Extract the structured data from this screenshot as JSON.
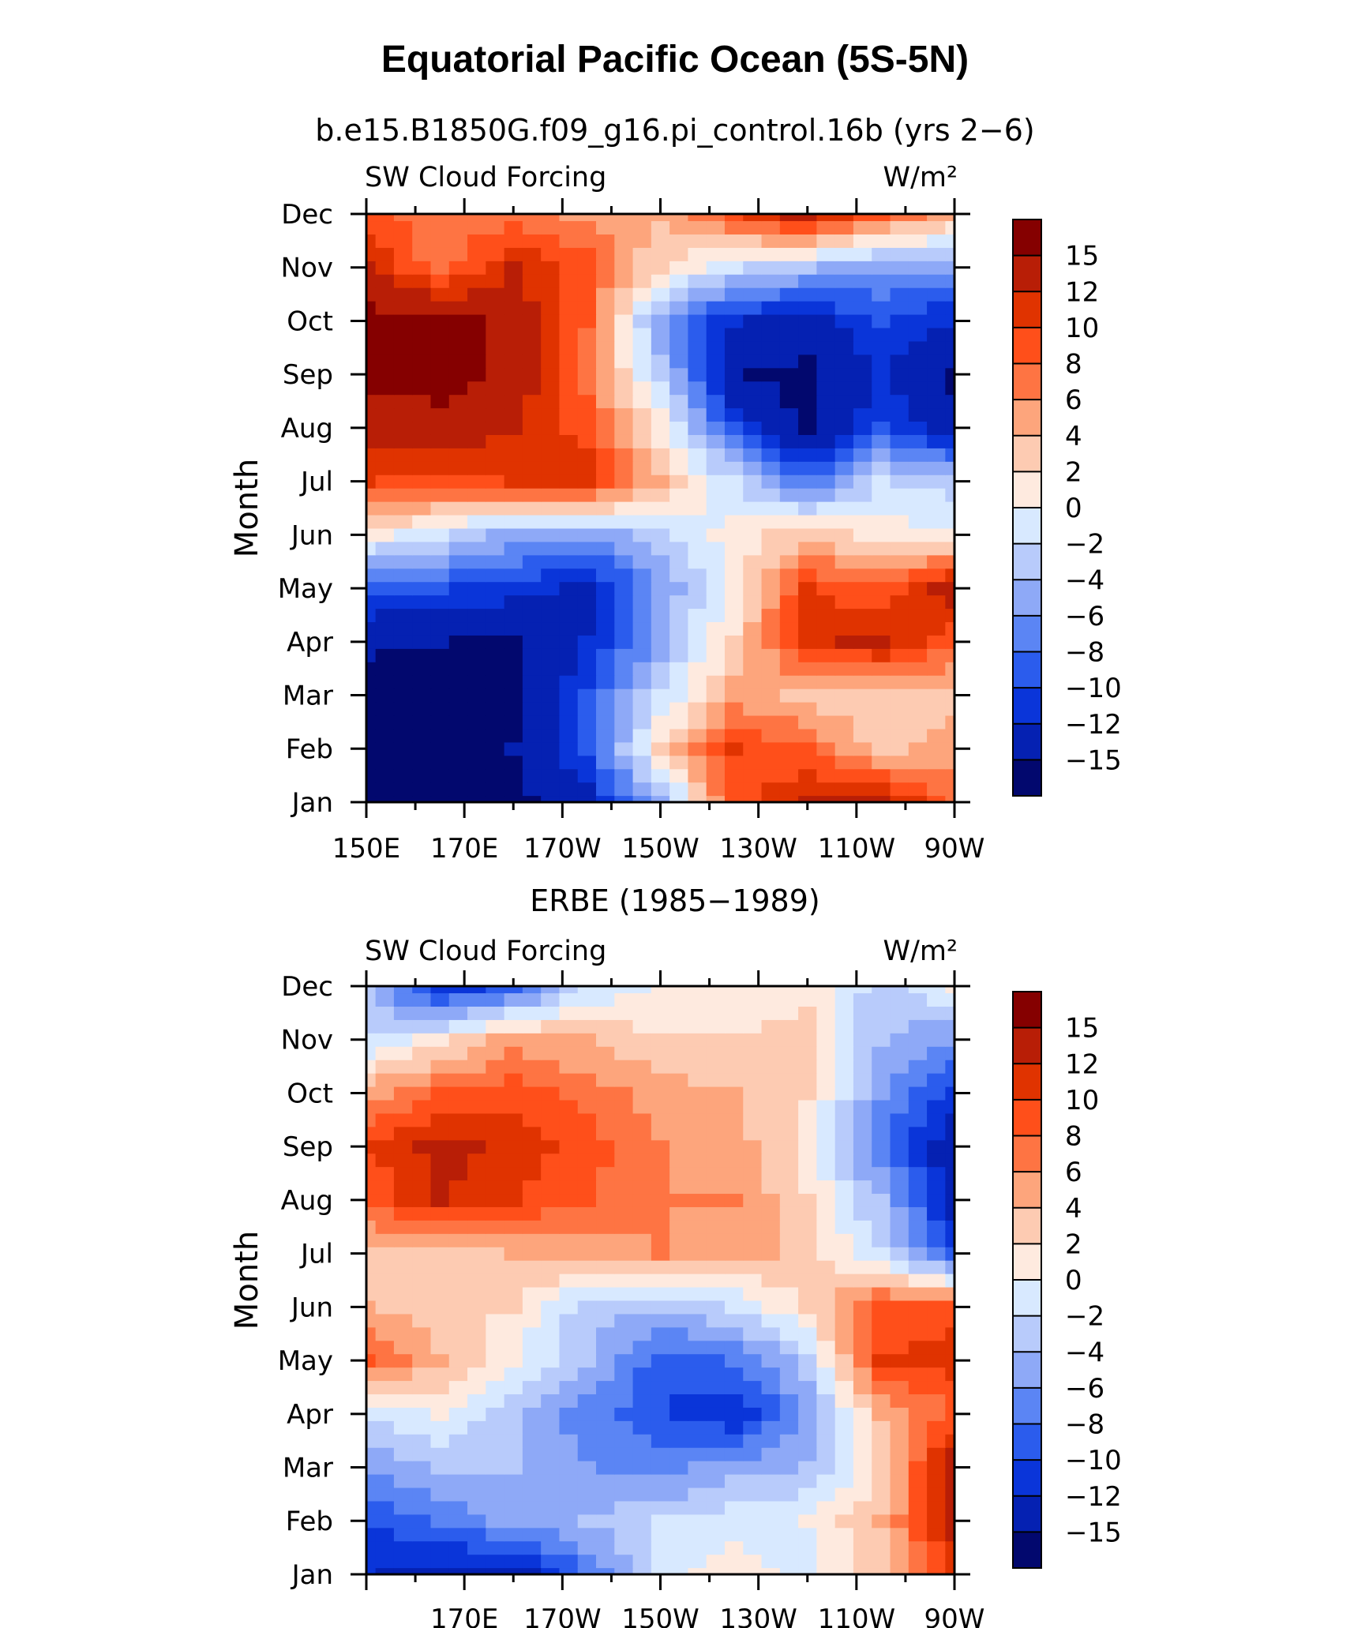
{
  "title": "Equatorial Pacific Ocean (5S-5N)",
  "colorscale": {
    "boundaries": [
      15,
      12,
      10,
      8,
      6,
      4,
      2,
      0,
      -2,
      -4,
      -6,
      -8,
      -10,
      -12,
      -15
    ],
    "colors": [
      "#850000",
      "#b81e06",
      "#e03300",
      "#ff4f1a",
      "#fe7443",
      "#fda57c",
      "#fdcbb2",
      "#feeadf",
      "#d8e9ff",
      "#b8cbfb",
      "#8ea9f7",
      "#5b85f4",
      "#2b5ced",
      "#0a35d9",
      "#0521b2",
      "#02086e"
    ]
  },
  "chart_data": [
    {
      "type": "heatmap",
      "panel_title": "b.e15.B1850G.f09_g16.pi_control.16b (yrs 2−6)",
      "left_label": "SW Cloud Forcing",
      "right_label": "W/m²",
      "ylabel": "Month",
      "x_tick_labels": [
        "150E",
        "170E",
        "170W",
        "150W",
        "130W",
        "110W",
        "90W"
      ],
      "x_ticks_lon": [
        150,
        170,
        190,
        210,
        230,
        250,
        270
      ],
      "xlim": [
        150,
        270
      ],
      "y_tick_labels": [
        "Jan",
        "Feb",
        "Mar",
        "Apr",
        "May",
        "Jun",
        "Jul",
        "Aug",
        "Sep",
        "Oct",
        "Nov",
        "Dec"
      ],
      "ylim": [
        1,
        12
      ],
      "lons": [
        150,
        165,
        180,
        195,
        210,
        225,
        240,
        255,
        270
      ],
      "grid": [
        [
          -18,
          -17,
          -16,
          -13,
          -5,
          9,
          12,
          13,
          7
        ],
        [
          -18,
          -17,
          -15,
          -10,
          2,
          10,
          8,
          3,
          5
        ],
        [
          -18,
          -17,
          -16,
          -10,
          -2,
          5,
          3,
          2,
          3
        ],
        [
          -14,
          -15,
          -16,
          -12,
          -5,
          2,
          11,
          13,
          8
        ],
        [
          -10,
          -10,
          -11,
          -13,
          -6,
          1,
          10,
          8,
          14
        ],
        [
          1,
          -2,
          -5,
          -6,
          -3,
          1,
          3,
          1,
          0
        ],
        [
          10,
          9,
          10,
          11,
          4,
          -2,
          -8,
          -2,
          -3
        ],
        [
          13,
          14,
          12,
          9,
          1,
          -10,
          -16,
          -10,
          -14
        ],
        [
          16,
          16,
          14,
          7,
          -3,
          -15,
          -16,
          -12,
          -16
        ],
        [
          16,
          16,
          14,
          8,
          -6,
          -12,
          -13,
          -10,
          -12
        ],
        [
          12,
          7,
          12,
          9,
          2,
          -2,
          -4,
          -6,
          -6
        ],
        [
          9,
          6,
          7,
          5,
          4,
          9,
          13,
          8,
          4
        ]
      ]
    },
    {
      "type": "heatmap",
      "panel_title": "ERBE (1985−1989)",
      "left_label": "SW Cloud Forcing",
      "right_label": "W/m²",
      "ylabel": "Month",
      "x_tick_labels": [
        "170E",
        "170W",
        "150W",
        "130W",
        "110W",
        "90W"
      ],
      "x_ticks_lon": [
        170,
        190,
        210,
        230,
        250,
        270
      ],
      "xlim": [
        150,
        270
      ],
      "y_tick_labels": [
        "Jan",
        "Feb",
        "Mar",
        "Apr",
        "May",
        "Jun",
        "Jul",
        "Aug",
        "Sep",
        "Oct",
        "Nov",
        "Dec"
      ],
      "ylim": [
        1,
        12
      ],
      "lons": [
        150,
        165,
        180,
        195,
        210,
        225,
        240,
        255,
        270
      ],
      "grid": [
        [
          -12,
          -13,
          -14,
          -8,
          -1,
          1,
          -1,
          3,
          10
        ],
        [
          -10,
          -8,
          -5,
          -4,
          -2,
          -1,
          0,
          4,
          13
        ],
        [
          -6,
          -4,
          -4,
          -6,
          -7,
          -5,
          -4,
          2,
          14
        ],
        [
          -2,
          0,
          -4,
          -7,
          -10,
          -12,
          -6,
          4,
          8
        ],
        [
          8,
          4,
          0,
          -4,
          -9,
          -8,
          -3,
          10,
          11
        ],
        [
          4,
          3,
          2,
          -3,
          -4,
          -2,
          2,
          9,
          9
        ],
        [
          3,
          3,
          4,
          5,
          6,
          5,
          3,
          -2,
          -10
        ],
        [
          8,
          12,
          10,
          8,
          6,
          6,
          2,
          -4,
          -13
        ],
        [
          10,
          13,
          11,
          9,
          6,
          5,
          1,
          -8,
          -14
        ],
        [
          5,
          8,
          9,
          7,
          5,
          4,
          2,
          -6,
          -11
        ],
        [
          -2,
          1,
          5,
          4,
          2,
          2,
          3,
          -4,
          -6
        ],
        [
          -4,
          -12,
          -9,
          -2,
          0,
          0,
          1,
          -3,
          0
        ]
      ]
    }
  ]
}
